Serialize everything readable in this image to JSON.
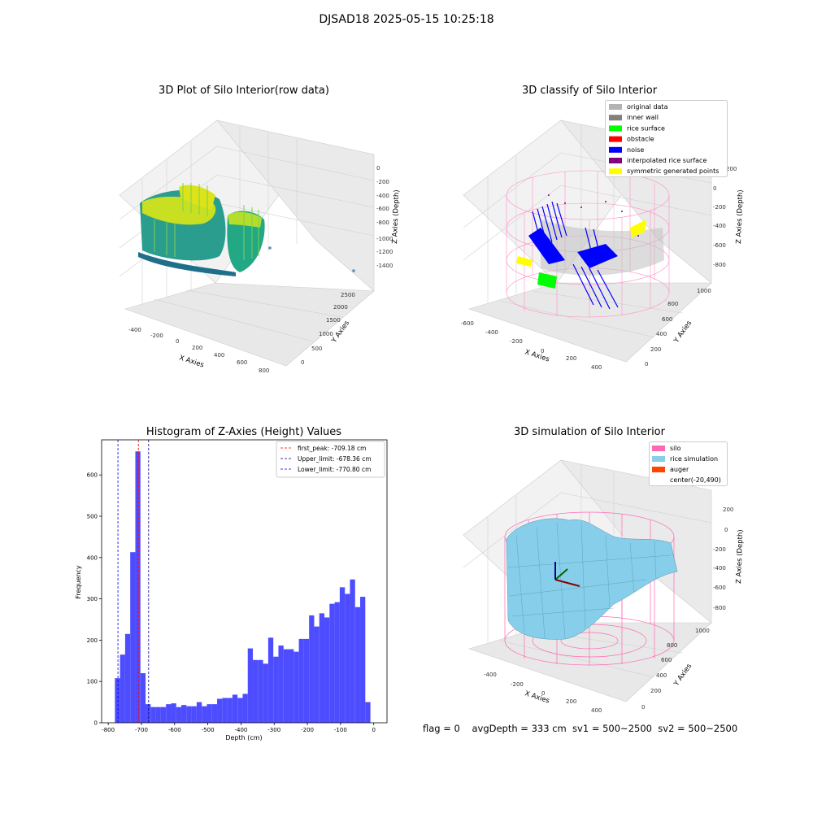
{
  "figure": {
    "suptitle": "DJSAD18 2025-05-15 10:25:18",
    "footer": "flag = 0    avgDepth = 333 cm  sv1 = 500~2500  sv2 = 500~2500"
  },
  "panels": {
    "raw": {
      "title": "3D Plot of Silo Interior(row data)",
      "xlabel": "X Axies",
      "ylabel": "Y Axies",
      "zlabel": "Z Axies (Depth)",
      "xticks": [
        "-400",
        "-200",
        "0",
        "200",
        "400",
        "600",
        "800"
      ],
      "yticks": [
        "0",
        "500",
        "1000",
        "1500",
        "2000",
        "2500"
      ],
      "zticks": [
        "0",
        "-200",
        "-400",
        "-600",
        "-800",
        "-1000",
        "-1200",
        "-1400"
      ]
    },
    "classify": {
      "title": "3D classify of Silo Interior",
      "xlabel": "X Axies",
      "ylabel": "Y Axies",
      "zlabel": "Z Axies (Depth)",
      "xticks": [
        "-600",
        "-400",
        "-200",
        "0",
        "200",
        "400"
      ],
      "yticks": [
        "0",
        "200",
        "400",
        "600",
        "800",
        "1000"
      ],
      "zticks": [
        "200",
        "0",
        "-200",
        "-400",
        "-600",
        "-800"
      ],
      "legend": [
        {
          "label": "original data",
          "color": "#b3b3b3"
        },
        {
          "label": "inner wall",
          "color": "#808080"
        },
        {
          "label": "rice surface",
          "color": "#00ff00"
        },
        {
          "label": "obstacle",
          "color": "#ff0000"
        },
        {
          "label": "noise",
          "color": "#0000ff"
        },
        {
          "label": "interpolated rice surface",
          "color": "#800080"
        },
        {
          "label": "symmetric generated points",
          "color": "#ffff00"
        }
      ]
    },
    "simulation": {
      "title": "3D simulation of Silo Interior",
      "xlabel": "X Axies",
      "ylabel": "Y Axies",
      "zlabel": "Z Axies (Depth)",
      "xticks": [
        "-400",
        "-200",
        "0",
        "200",
        "400"
      ],
      "yticks": [
        "0",
        "200",
        "400",
        "600",
        "800",
        "1000"
      ],
      "zticks": [
        "200",
        "0",
        "-200",
        "-400",
        "-600",
        "-800"
      ],
      "legend": [
        {
          "label": "silo",
          "color": "#ff69b4"
        },
        {
          "label": "rice simulation",
          "color": "#87ceeb"
        },
        {
          "label": "auger",
          "color": "#ff4500"
        },
        {
          "label": "center(-20,490)",
          "color": ""
        }
      ]
    }
  },
  "chart_data": {
    "type": "bar",
    "title": "Histogram of Z-Axies (Height) Values",
    "xlabel": "Depth (cm)",
    "ylabel": "Frequency",
    "xlim": [
      -820,
      40
    ],
    "ylim": [
      0,
      685
    ],
    "bin_start": -780,
    "bin_width": 15.4,
    "values": [
      108,
      165,
      215,
      413,
      657,
      120,
      45,
      38,
      38,
      38,
      45,
      47,
      38,
      43,
      40,
      40,
      50,
      40,
      45,
      45,
      58,
      60,
      60,
      68,
      60,
      70,
      180,
      152,
      152,
      143,
      206,
      160,
      187,
      178,
      178,
      172,
      203,
      203,
      260,
      233,
      265,
      255,
      288,
      292,
      328,
      312,
      347,
      280,
      305,
      50
    ],
    "xticks": [
      -800,
      -700,
      -600,
      -500,
      -400,
      -300,
      -200,
      -100,
      0
    ],
    "yticks": [
      0,
      100,
      200,
      300,
      400,
      500,
      600
    ],
    "bar_color": "#4d4dff",
    "lines": [
      {
        "label": "first_peak: -709.18 cm",
        "x": -709.18,
        "color": "#ff0000"
      },
      {
        "label": "Upper_limit: -678.36 cm",
        "x": -678.36,
        "color": "#00008b"
      },
      {
        "label": "Lower_limit: -770.80 cm",
        "x": -770.8,
        "color": "#0000ff"
      }
    ]
  }
}
